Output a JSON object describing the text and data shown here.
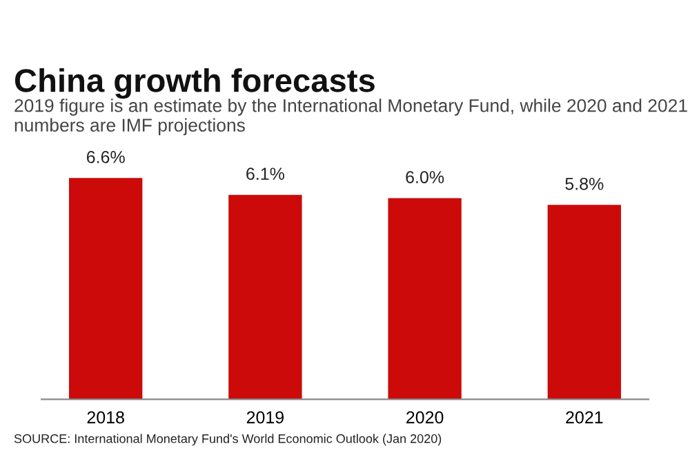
{
  "chart_data": {
    "type": "bar",
    "title": "China growth forecasts",
    "subtitle": "2019 figure is an estimate by the International Monetary Fund, while 2020 and 2021 numbers are IMF projections",
    "categories": [
      "2018",
      "2019",
      "2020",
      "2021"
    ],
    "values": [
      6.6,
      6.1,
      6.0,
      5.8
    ],
    "value_labels": [
      "6.6%",
      "6.1%",
      "6.0%",
      "5.8%"
    ],
    "color": "#cc0a0a",
    "annotations": [
      "SOURCE: International Monetary Fund's World Economic Outlook (Jan 2020)"
    ]
  }
}
